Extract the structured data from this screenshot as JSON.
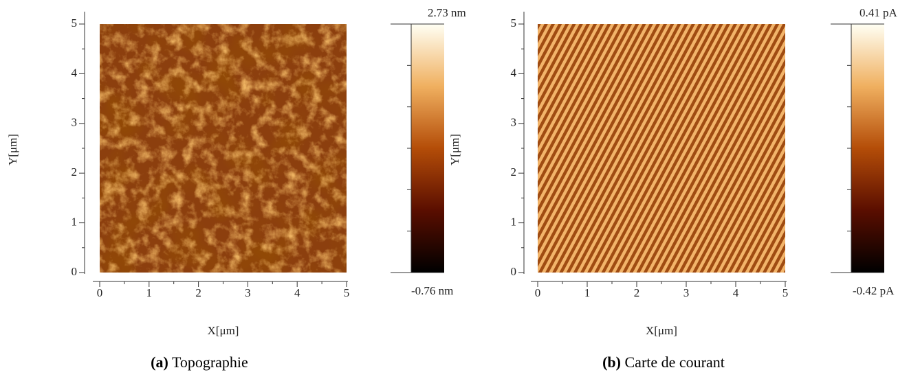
{
  "chart_data": [
    {
      "type": "image",
      "caption_label": "(a)",
      "caption": "Topographie",
      "xlabel": "X[μm]",
      "ylabel": "Y[μm]",
      "xlim": [
        0,
        5
      ],
      "ylim": [
        0,
        5
      ],
      "xticks": [
        0,
        1,
        2,
        3,
        4,
        5
      ],
      "yticks": [
        0,
        1,
        2,
        3,
        4,
        5
      ],
      "clim": [
        -0.76,
        2.73
      ],
      "cbar_ticks": [
        {
          "value": -0.76,
          "label": "-0.76 nm"
        },
        {
          "value": 2.73,
          "label": "2.73 nm"
        }
      ]
    },
    {
      "type": "image",
      "caption_label": "(b)",
      "caption": "Carte de courant",
      "xlabel": "X[μm]",
      "ylabel": "Y[μm]",
      "xlim": [
        0,
        5
      ],
      "ylim": [
        0,
        5
      ],
      "xticks": [
        0,
        1,
        2,
        3,
        4,
        5
      ],
      "yticks": [
        0,
        1,
        2,
        3,
        4,
        5
      ],
      "clim": [
        -0.42,
        0.41
      ],
      "cbar_ticks": [
        {
          "value": -0.42,
          "label": "-0.42 pA"
        },
        {
          "value": 0.41,
          "label": "0.41 pA"
        }
      ]
    }
  ]
}
